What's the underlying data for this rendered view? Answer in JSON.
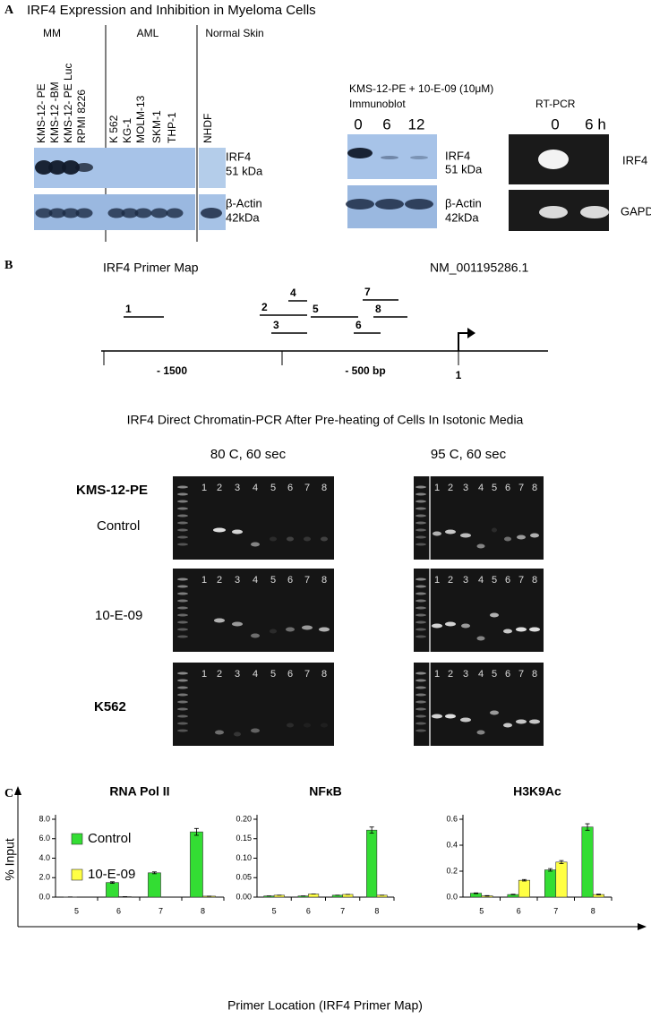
{
  "panel_a": {
    "label": "A",
    "title": "IRF4 Expression and Inhibition in Myeloma Cells",
    "groups": [
      "MM",
      "AML",
      "Normal Skin"
    ],
    "lanes": [
      "KMS-12- PE",
      "KMS-12 -BM",
      "KMS-12- PE  Luc",
      "RPMI 8226",
      "K 562",
      "KG-1",
      "MOLM-13",
      "SKM-1",
      "THP-1",
      "NHDF"
    ],
    "blot_labels": [
      "IRF4",
      "51 kDa",
      "β-Actin",
      "42kDa"
    ],
    "treatment": "KMS-12-PE + 10-E-09 (10μM)",
    "immunoblot": "Immunoblot",
    "rt_pcr": "RT-PCR",
    "immunoblot_times": [
      "0",
      "6",
      "12"
    ],
    "rt_pcr_times": [
      "0",
      "6 h"
    ],
    "immunoblot_labels": [
      "IRF4",
      "51 kDa",
      "β-Actin",
      "42kDa"
    ],
    "rt_pcr_labels": [
      "IRF4",
      "GAPDH"
    ]
  },
  "panel_b": {
    "label": "B",
    "title": "IRF4 Primer Map",
    "accession": "NM_001195286.1",
    "primers": [
      "1",
      "2",
      "3",
      "4",
      "5",
      "6",
      "7",
      "8"
    ],
    "positions": [
      "- 1500",
      "- 500 bp",
      "1"
    ],
    "gel_title": "IRF4 Direct Chromatin-PCR After Pre-heating of Cells In Isotonic Media",
    "conditions": [
      "80 C, 60 sec",
      "95 C, 60 sec"
    ],
    "cell_lines": [
      "KMS-12-PE",
      "K562"
    ],
    "treatments": [
      "Control",
      "10-E-09"
    ],
    "lanes": [
      "1",
      "2",
      "3",
      "4",
      "5",
      "6",
      "7",
      "8"
    ]
  },
  "panel_c": {
    "label": "C",
    "y_label": "% Input",
    "x_label": "Primer Location (IRF4 Primer Map)"
  },
  "chart_data": [
    {
      "type": "bar",
      "title": "RNA Pol II",
      "categories": [
        "5",
        "6",
        "7",
        "8"
      ],
      "series": [
        {
          "name": "Control",
          "color": "#33dd33",
          "values": [
            0.02,
            1.5,
            2.5,
            6.7
          ],
          "errors": [
            0,
            0.08,
            0.1,
            0.35
          ]
        },
        {
          "name": "10-E-09",
          "color": "#ffff44",
          "values": [
            0.0,
            0.05,
            0.0,
            0.1
          ],
          "errors": [
            0,
            0,
            0,
            0
          ]
        }
      ],
      "ylim": [
        0,
        8
      ],
      "yticks": [
        {
          "value": 0,
          "label": "0.0"
        },
        {
          "value": 2,
          "label": "2.0"
        },
        {
          "value": 4,
          "label": "4.0"
        },
        {
          "value": 6,
          "label": "6.0"
        },
        {
          "value": 8,
          "label": "8.0"
        }
      ]
    },
    {
      "type": "bar",
      "title": "NFκB",
      "categories": [
        "5",
        "6",
        "7",
        "8"
      ],
      "series": [
        {
          "color": "#33dd33",
          "values": [
            0.003,
            0.003,
            0.005,
            0.172
          ],
          "errors": [
            0,
            0,
            0,
            0.008
          ]
        },
        {
          "color": "#ffff44",
          "values": [
            0.005,
            0.008,
            0.007,
            0.005
          ],
          "errors": [
            0,
            0,
            0,
            0
          ]
        }
      ],
      "ylim": [
        0,
        0.2
      ],
      "yticks": [
        {
          "value": 0,
          "label": "0.00"
        },
        0.05,
        {
          "value": 0.1,
          "label": "0.10"
        },
        0.15,
        {
          "value": 0.2,
          "label": "0.20"
        }
      ]
    },
    {
      "type": "bar",
      "title": "H3K9Ac",
      "categories": [
        "5",
        "6",
        "7",
        "8"
      ],
      "series": [
        {
          "color": "#33dd33",
          "values": [
            0.03,
            0.02,
            0.21,
            0.54
          ],
          "errors": [
            0.003,
            0.002,
            0.01,
            0.025
          ]
        },
        {
          "color": "#ffff44",
          "values": [
            0.01,
            0.13,
            0.27,
            0.02
          ],
          "errors": [
            0.002,
            0.006,
            0.012,
            0.003
          ]
        }
      ],
      "ylim": [
        0,
        0.6
      ],
      "yticks": [
        {
          "value": 0,
          "label": "0.0"
        },
        0.2,
        0.4,
        0.6
      ]
    }
  ]
}
